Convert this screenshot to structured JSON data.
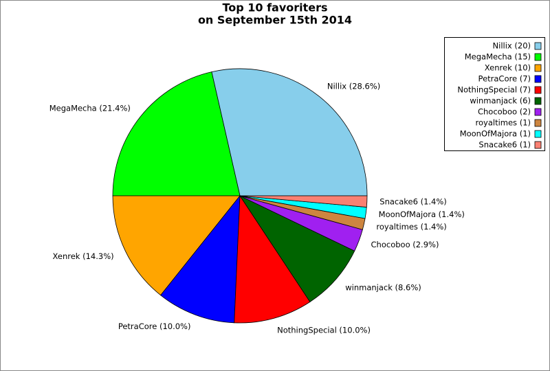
{
  "chart_data": {
    "type": "pie",
    "title": "Top 10 favoriters",
    "subtitle": "on September 15th 2014",
    "categories": [
      "Nillix",
      "MegaMecha",
      "Xenrek",
      "PetraCore",
      "NothingSpecial",
      "winmanjack",
      "Chocoboo",
      "royaltimes",
      "MoonOfMajora",
      "Snacake6"
    ],
    "values": [
      20,
      15,
      10,
      7,
      7,
      6,
      2,
      1,
      1,
      1
    ],
    "slice_labels": [
      "Nillix (28.6%)",
      "MegaMecha (21.4%)",
      "Xenrek (14.3%)",
      "PetraCore (10.0%)",
      "NothingSpecial (10.0%)",
      "winmanjack (8.6%)",
      "Chocoboo (2.9%)",
      "royaltimes (1.4%)",
      "MoonOfMajora (1.4%)",
      "Snacake6 (1.4%)"
    ],
    "legend_labels": [
      "Nillix (20)",
      "MegaMecha (15)",
      "Xenrek (10)",
      "PetraCore (7)",
      "NothingSpecial (7)",
      "winmanjack (6)",
      "Chocoboo (2)",
      "royaltimes (1)",
      "MoonOfMajora (1)",
      "Snacake6 (1)"
    ],
    "colors": [
      "#87ceeb",
      "#00ff00",
      "#ffa500",
      "#0000ff",
      "#ff0000",
      "#006400",
      "#a020f0",
      "#cd853f",
      "#00ffff",
      "#fa8072"
    ],
    "legend": "upper right"
  }
}
